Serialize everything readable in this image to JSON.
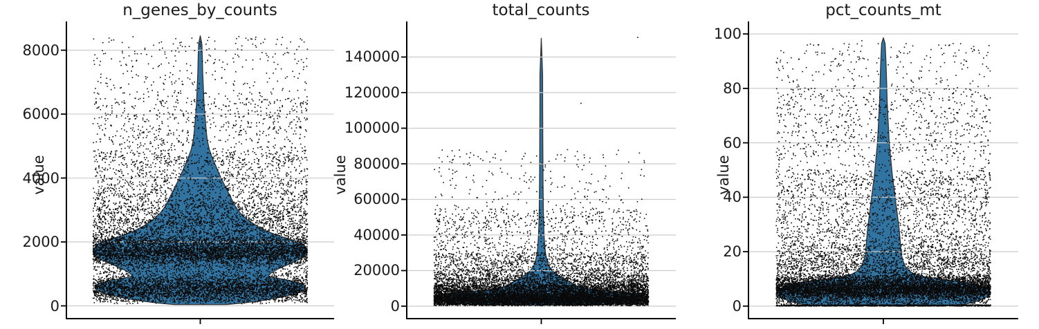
{
  "figure": {
    "background": "#ffffff"
  },
  "colors": {
    "violin_fill": "#3274a1",
    "violin_edge": "#303030",
    "grid": "#cccccc",
    "axis": "#000000",
    "dots": "#0a0a0a",
    "text": "#1a1a1a"
  },
  "chart_data": [
    {
      "type": "violin",
      "title": "n_genes_by_counts",
      "ylabel": "value",
      "yticks": [
        0,
        2000,
        4000,
        6000,
        8000
      ],
      "ylim": [
        -400,
        8900
      ],
      "data_max": 8450,
      "violin_profile": [
        [
          40,
          38
        ],
        [
          90,
          62
        ],
        [
          160,
          88
        ],
        [
          260,
          114
        ],
        [
          380,
          138
        ],
        [
          500,
          150
        ],
        [
          600,
          152
        ],
        [
          700,
          147
        ],
        [
          800,
          128
        ],
        [
          880,
          108
        ],
        [
          940,
          98
        ],
        [
          1020,
          102
        ],
        [
          1150,
          112
        ],
        [
          1300,
          128
        ],
        [
          1450,
          143
        ],
        [
          1600,
          153
        ],
        [
          1750,
          155
        ],
        [
          1900,
          150
        ],
        [
          2000,
          142
        ],
        [
          2100,
          128
        ],
        [
          2200,
          112
        ],
        [
          2350,
          95
        ],
        [
          2500,
          82
        ],
        [
          2700,
          68
        ],
        [
          2900,
          58
        ],
        [
          3100,
          51
        ],
        [
          3400,
          44
        ],
        [
          3700,
          37
        ],
        [
          4000,
          30
        ],
        [
          4300,
          24
        ],
        [
          4600,
          18
        ],
        [
          4900,
          13
        ],
        [
          5200,
          10
        ],
        [
          5500,
          8.5
        ],
        [
          5900,
          7
        ],
        [
          6300,
          5.5
        ],
        [
          6800,
          4.5
        ],
        [
          7300,
          3.5
        ],
        [
          7800,
          3
        ],
        [
          8200,
          2.3
        ],
        [
          8450,
          0
        ]
      ],
      "scatter": {
        "seed": 42,
        "count": 13000,
        "components": [
          {
            "type": "normal",
            "mean": 1680,
            "sd": 210,
            "min": 1100,
            "max": 2400,
            "weight": 0.26
          },
          {
            "type": "normal",
            "mean": 530,
            "sd": 210,
            "min": 60,
            "max": 1100,
            "weight": 0.22
          },
          {
            "type": "uniform",
            "min": 120,
            "max": 2150,
            "weight": 0.17
          },
          {
            "type": "normal",
            "mean": 2500,
            "sd": 520,
            "min": 1900,
            "max": 4300,
            "weight": 0.13
          },
          {
            "type": "uniform",
            "min": 2000,
            "max": 4800,
            "weight": 0.11
          },
          {
            "type": "uniform",
            "min": 3000,
            "max": 6500,
            "weight": 0.06
          },
          {
            "type": "uniform",
            "min": 4500,
            "max": 8440,
            "weight": 0.05
          }
        ],
        "outliers": [
          [
            8400,
            0.08
          ]
        ]
      }
    },
    {
      "type": "violin",
      "title": "total_counts",
      "ylabel": "value",
      "yticks": [
        0,
        20000,
        40000,
        60000,
        80000,
        100000,
        120000,
        140000
      ],
      "ylim": [
        -7000,
        160000
      ],
      "data_max": 150500,
      "violin_profile": [
        [
          600,
          70
        ],
        [
          1200,
          105
        ],
        [
          2000,
          130
        ],
        [
          3000,
          145
        ],
        [
          4000,
          152
        ],
        [
          5000,
          153
        ],
        [
          6000,
          148
        ],
        [
          7000,
          135
        ],
        [
          8000,
          112
        ],
        [
          8800,
          88
        ],
        [
          9500,
          72
        ],
        [
          10500,
          58
        ],
        [
          11500,
          50
        ],
        [
          12500,
          45
        ],
        [
          13500,
          41
        ],
        [
          15000,
          34
        ],
        [
          16500,
          28
        ],
        [
          18000,
          22
        ],
        [
          20000,
          16
        ],
        [
          22000,
          12
        ],
        [
          24000,
          9.5
        ],
        [
          27000,
          7.5
        ],
        [
          30000,
          6
        ],
        [
          34000,
          5
        ],
        [
          40000,
          4
        ],
        [
          48000,
          3.3
        ],
        [
          56000,
          2.9
        ],
        [
          70000,
          2.5
        ],
        [
          90000,
          2.2
        ],
        [
          110000,
          2
        ],
        [
          130000,
          1.9
        ],
        [
          150500,
          0
        ]
      ],
      "scatter": {
        "seed": 43,
        "count": 13000,
        "components": [
          {
            "type": "normal",
            "mean": 3800,
            "sd": 2300,
            "min": 250,
            "max": 9000,
            "weight": 0.42
          },
          {
            "type": "uniform",
            "min": 300,
            "max": 12000,
            "weight": 0.2
          },
          {
            "type": "normal",
            "mean": 11000,
            "sd": 4500,
            "min": 6000,
            "max": 25000,
            "weight": 0.16
          },
          {
            "type": "uniform",
            "min": 8000,
            "max": 30000,
            "weight": 0.1
          },
          {
            "type": "uniform",
            "min": 12000,
            "max": 55000,
            "weight": 0.075
          },
          {
            "type": "uniform",
            "min": 30000,
            "max": 88000,
            "weight": 0.025
          }
        ],
        "outliers": [
          [
            151000,
            0.9
          ],
          [
            114000,
            0.37
          ],
          [
            87000,
            -0.33
          ],
          [
            85000,
            0.15
          ]
        ]
      }
    },
    {
      "type": "violin",
      "title": "pct_counts_mt",
      "ylabel": "value",
      "yticks": [
        0,
        20,
        40,
        60,
        80,
        100
      ],
      "ylim": [
        -4.6,
        104.6
      ],
      "data_max": 98.6,
      "violin_profile": [
        [
          0.2,
          95
        ],
        [
          0.8,
          120
        ],
        [
          1.5,
          132
        ],
        [
          2.5,
          143
        ],
        [
          3.5,
          150
        ],
        [
          4.5,
          155
        ],
        [
          5.5,
          154
        ],
        [
          6.5,
          149
        ],
        [
          7.5,
          140
        ],
        [
          8.5,
          126
        ],
        [
          9.2,
          105
        ],
        [
          10,
          82
        ],
        [
          10.8,
          60
        ],
        [
          11.6,
          47
        ],
        [
          12.5,
          40
        ],
        [
          13.5,
          35
        ],
        [
          15,
          31
        ],
        [
          17,
          28
        ],
        [
          19,
          26
        ],
        [
          22,
          25
        ],
        [
          25,
          24
        ],
        [
          28,
          23
        ],
        [
          32,
          21
        ],
        [
          36,
          19
        ],
        [
          40,
          17
        ],
        [
          44,
          15
        ],
        [
          48,
          13
        ],
        [
          52,
          11.5
        ],
        [
          56,
          10
        ],
        [
          60,
          8.5
        ],
        [
          65,
          7.5
        ],
        [
          70,
          6.5
        ],
        [
          75,
          5.5
        ],
        [
          80,
          5
        ],
        [
          84,
          4.5
        ],
        [
          88,
          4
        ],
        [
          91,
          3.5
        ],
        [
          94,
          3
        ],
        [
          96.5,
          2.5
        ],
        [
          98.6,
          0
        ]
      ],
      "scatter": {
        "seed": 44,
        "count": 13000,
        "components": [
          {
            "type": "normal",
            "mean": 6.2,
            "sd": 2.0,
            "min": 0.8,
            "max": 11,
            "weight": 0.38
          },
          {
            "type": "uniform",
            "min": 0.0,
            "max": 0.45,
            "weight": 0.1
          },
          {
            "type": "uniform",
            "min": 0.7,
            "max": 11.5,
            "weight": 0.14
          },
          {
            "type": "normal",
            "mean": 13,
            "sd": 6,
            "min": 9,
            "max": 30,
            "weight": 0.12
          },
          {
            "type": "uniform",
            "min": 9,
            "max": 50,
            "weight": 0.14
          },
          {
            "type": "uniform",
            "min": 15,
            "max": 80,
            "weight": 0.08
          },
          {
            "type": "uniform",
            "min": 55,
            "max": 96.5,
            "weight": 0.04
          }
        ],
        "outliers": [
          [
            97.5,
            -0.2
          ]
        ]
      }
    }
  ]
}
